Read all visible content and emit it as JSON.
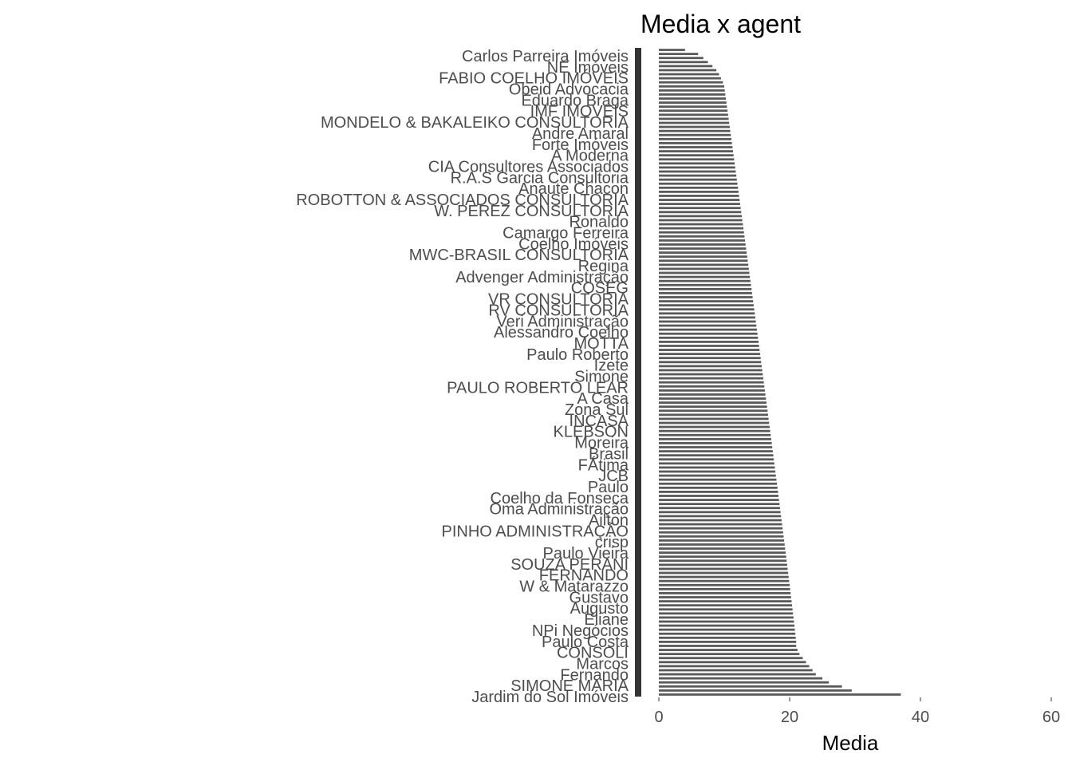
{
  "chart_data": {
    "type": "bar",
    "orientation": "horizontal",
    "title": "Media x  agent",
    "xlabel": "Media",
    "ylabel": "",
    "xlim": [
      0,
      60
    ],
    "xticks": [
      0,
      20,
      40,
      60
    ],
    "grid": false,
    "legend": "none",
    "bar_color": "#595959",
    "text_color": "#4d4d4d",
    "visible_category_labels": [
      "Carlos Parreira Imóveis",
      "NE Imóveis",
      "FABIO COELHO IMÓVEIS",
      "Obeid Advocacia",
      "Eduardo Braga",
      "IMF IMOVEIS",
      "MONDELO & BAKALEIKO CONSULTORIA",
      "Andre Amaral",
      "Forte Imóveis",
      "A Moderna",
      "CIA Consultores Associados",
      "R.A.S Garcia Consultoria",
      "Anaute Chacon",
      "ROBOTTON & ASSOCIADOS CONSULTORIA",
      "W. PEREZ CONSULTORIA",
      "Ronaldo",
      "Camargo Ferreira",
      "Coelho Imóveis",
      "MWC-BRASIL CONSULTORIA",
      "Regina",
      "Advenger Administração",
      "COSEG",
      "VR CONSULTORIA",
      "RV CONSULTORIA",
      "Veri Administração",
      "Alessandro Coelho",
      "MOTTA",
      "Paulo Roberto",
      "Izete",
      "Simone",
      "PAULO ROBERTO LEAR",
      "A Casa",
      "Zona Sul",
      "INCASA",
      "KLEBSON",
      "Moreira",
      "Brasil",
      "FÁtima",
      "JCB",
      "Paulo",
      "Coelho da Fonseca",
      "Oma Administração",
      "Ailton",
      "PINHO ADMINISTRAÇÃO",
      "crisp",
      "Paulo Vieira",
      "SOUZA PERANI",
      "FERNANDO",
      "W & Matarazzo",
      "Gustavo",
      "Augusto",
      "Eliane",
      "NPi Negócios",
      "Paulo Costa",
      "CONSOLI",
      "Marcos",
      "Fernando",
      "SIMONE MARIA",
      "Jardim do Sol Imóveis"
    ],
    "n_categories": 160,
    "sorted": "descending",
    "value_profile": {
      "max": 37.0,
      "top_values": [
        37.0,
        29.5,
        28.0,
        26.0,
        25.0,
        24.0,
        23.5,
        23.0,
        22.5,
        22.0,
        21.5,
        21.2,
        21.0
      ],
      "min": 4.0,
      "bottom_values": [
        4.0,
        6.0,
        6.8,
        7.5,
        8.2,
        8.8,
        9.2,
        9.5,
        9.8,
        10.0
      ]
    }
  }
}
